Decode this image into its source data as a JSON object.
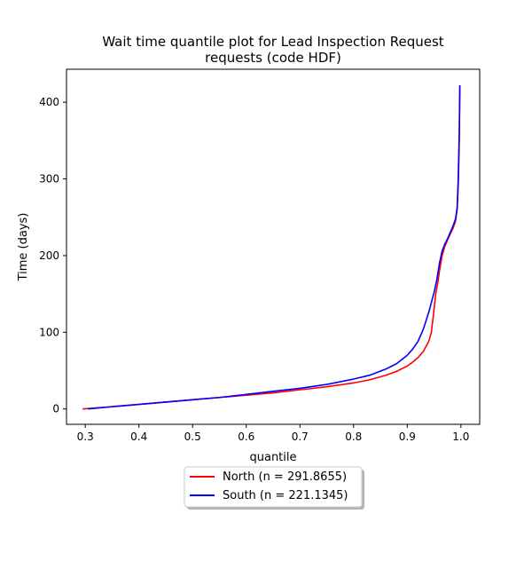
{
  "chart_data": {
    "type": "line",
    "title_lines": [
      "Wait time quantile plot for Lead Inspection Request",
      "requests (code HDF)"
    ],
    "xlabel": "quantile",
    "ylabel": "Time (days)",
    "xlim": [
      0.265,
      1.035
    ],
    "ylim": [
      -20,
      443
    ],
    "xticks": [
      0.3,
      0.4,
      0.5,
      0.6,
      0.7,
      0.8,
      0.9,
      1.0
    ],
    "xtick_labels": [
      "0.3",
      "0.4",
      "0.5",
      "0.6",
      "0.7",
      "0.8",
      "0.9",
      "1.0"
    ],
    "yticks": [
      0,
      100,
      200,
      300,
      400
    ],
    "ytick_labels": [
      "0",
      "100",
      "200",
      "300",
      "400"
    ],
    "grid": false,
    "legend_position": "below plot, centered",
    "series": [
      {
        "name": "North (n = 291.8655)",
        "color": "#ff0000",
        "x": [
          0.295,
          0.35,
          0.4,
          0.45,
          0.5,
          0.55,
          0.6,
          0.65,
          0.7,
          0.75,
          0.8,
          0.83,
          0.86,
          0.88,
          0.9,
          0.91,
          0.92,
          0.93,
          0.94,
          0.945,
          0.95,
          0.953,
          0.957,
          0.96,
          0.965,
          0.97,
          0.975,
          0.98,
          0.985,
          0.99,
          0.993,
          0.995,
          0.997,
          0.998
        ],
        "y": [
          0,
          3,
          6,
          9,
          12,
          15,
          18,
          21,
          25,
          29,
          34,
          38,
          44,
          49,
          56,
          61,
          67,
          75,
          88,
          100,
          130,
          150,
          165,
          180,
          200,
          212,
          220,
          228,
          235,
          245,
          260,
          290,
          350,
          422
        ]
      },
      {
        "name": "South (n = 221.1345)",
        "color": "#0000ff",
        "x": [
          0.305,
          0.35,
          0.4,
          0.45,
          0.5,
          0.55,
          0.6,
          0.65,
          0.7,
          0.75,
          0.8,
          0.83,
          0.86,
          0.88,
          0.9,
          0.91,
          0.92,
          0.93,
          0.94,
          0.95,
          0.955,
          0.96,
          0.965,
          0.97,
          0.975,
          0.98,
          0.985,
          0.99,
          0.993,
          0.995,
          0.997,
          0.998
        ],
        "y": [
          0,
          3,
          6,
          9,
          12,
          15,
          19,
          23,
          27,
          32,
          39,
          44,
          52,
          59,
          70,
          78,
          88,
          104,
          126,
          152,
          168,
          190,
          206,
          215,
          222,
          230,
          238,
          248,
          262,
          300,
          360,
          422
        ]
      }
    ]
  }
}
